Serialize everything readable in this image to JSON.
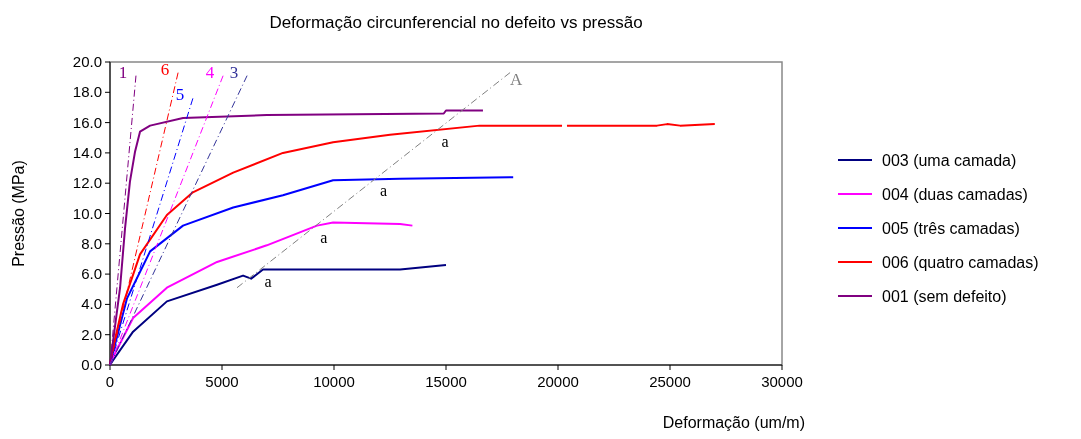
{
  "chart_data": {
    "type": "line",
    "title": "Deformação circunferencial no defeito vs pressão",
    "xlabel": "Deformação (um/m)",
    "ylabel": "Pressão (MPa)",
    "xlim": [
      0,
      30000
    ],
    "xticks": [
      0,
      5000,
      10000,
      15000,
      20000,
      25000,
      30000
    ],
    "ylim": [
      0,
      20
    ],
    "yticks": [
      {
        "value": 0,
        "label": "0.0"
      },
      {
        "value": 2,
        "label": "2.0"
      },
      {
        "value": 4,
        "label": "4.0"
      },
      {
        "value": 6,
        "label": "6.0"
      },
      {
        "value": 8,
        "label": "8.0"
      },
      {
        "value": 10,
        "label": "10.0"
      },
      {
        "value": 12,
        "label": "12.0"
      },
      {
        "value": 14,
        "label": "14.0"
      },
      {
        "value": 16,
        "label": "16.0"
      },
      {
        "value": 18,
        "label": "18.0"
      },
      {
        "value": 20,
        "label": "20.0"
      }
    ],
    "grid": false,
    "legend": "right",
    "marker": "none",
    "series": [
      {
        "name": "003 (uma camada)",
        "color": "#000080",
        "x": [
          0,
          130,
          1030,
          2540,
          4780,
          5940,
          6300,
          6830,
          12950,
          15000
        ],
        "values": [
          0,
          0.3,
          2.2,
          4.2,
          5.3,
          5.9,
          5.7,
          6.3,
          6.3,
          6.6
        ]
      },
      {
        "name": "004 (duas camadas)",
        "color": "#ff00ff",
        "x": [
          0,
          130,
          1030,
          2540,
          4780,
          7000,
          9240,
          9960,
          12950,
          13500
        ],
        "values": [
          0,
          0.5,
          3.1,
          5.1,
          6.8,
          7.9,
          9.2,
          9.4,
          9.3,
          9.2
        ]
      },
      {
        "name": "005 (três camadas)",
        "color": "#0000ff",
        "x": [
          0,
          130,
          760,
          1790,
          3260,
          5500,
          7720,
          9960,
          12950,
          18000
        ],
        "values": [
          0,
          0.8,
          4.4,
          7.5,
          9.2,
          10.4,
          11.2,
          12.2,
          12.3,
          12.4
        ]
      },
      {
        "name": "006 (quatro camadas)",
        "color": "#ff0000",
        "x": [
          0,
          130,
          580,
          1340,
          2540,
          3700,
          5500,
          7720,
          9960,
          12500,
          16500,
          20180,
          20300,
          20400,
          24420,
          24870,
          25450,
          27000
        ],
        "values": [
          0,
          1.1,
          4.0,
          7.3,
          9.9,
          11.4,
          12.7,
          14.0,
          14.7,
          15.2,
          15.8,
          15.8,
          null,
          15.8,
          15.8,
          15.9,
          15.8,
          15.9
        ]
      },
      {
        "name": "001 (sem defeito)",
        "color": "#800080",
        "x": [
          0,
          130,
          450,
          670,
          890,
          1120,
          1340,
          1790,
          3260,
          7000,
          14900,
          15000,
          16650
        ],
        "values": [
          0,
          1.5,
          5.1,
          9.0,
          12.1,
          14.1,
          15.4,
          15.8,
          16.3,
          16.5,
          16.6,
          16.8,
          16.8
        ]
      },
      {
        "name": "1",
        "type": "line",
        "line_style": "dashed",
        "color": "#800080",
        "x": [
          0,
          1160
        ],
        "values": [
          0,
          19.1
        ]
      },
      {
        "name": "6",
        "type": "line",
        "line_style": "dashed",
        "color": "#ff0000",
        "x": [
          0,
          3040
        ],
        "values": [
          0,
          19.3
        ]
      },
      {
        "name": "5",
        "type": "line",
        "line_style": "dashed",
        "color": "#0000ff",
        "x": [
          0,
          3700
        ],
        "values": [
          0,
          17.6
        ]
      },
      {
        "name": "4",
        "type": "line",
        "line_style": "dashed",
        "color": "#ff00ff",
        "x": [
          0,
          5050
        ],
        "values": [
          0,
          19.1
        ]
      },
      {
        "name": "3",
        "type": "line",
        "line_style": "dashed",
        "color": "#333399",
        "x": [
          0,
          6120
        ],
        "values": [
          0,
          19.1
        ]
      },
      {
        "name": "A",
        "type": "line",
        "line_style": "dashed",
        "color": "#808080",
        "x": [
          5670,
          17860
        ],
        "values": [
          5.1,
          19.3
        ]
      }
    ],
    "annotations": [
      {
        "text": "a",
        "x": 6700,
        "y": 6.3
      },
      {
        "text": "a",
        "x": 9190,
        "y": 9.2
      },
      {
        "text": "a",
        "x": 11850,
        "y": 12.3
      },
      {
        "text": "a",
        "x": 14600,
        "y": 15.5
      }
    ]
  }
}
